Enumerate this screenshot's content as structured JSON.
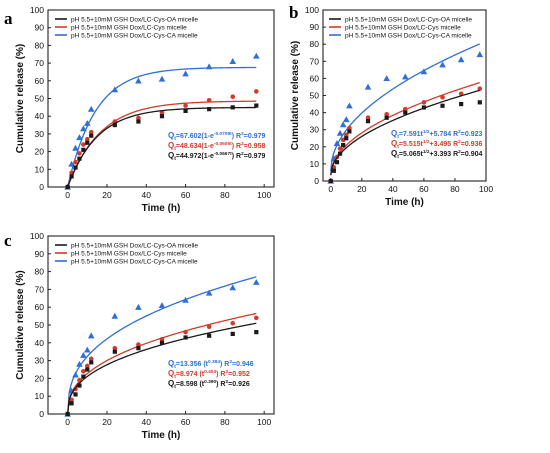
{
  "colors": {
    "oa": "#1a1a1a",
    "cys": "#d23b2a",
    "ca": "#2f6fd6"
  },
  "chart_data": [
    {
      "type": "scatter",
      "panel_label": "a",
      "xlabel": "Time (h)",
      "ylabel": "Cumulative release (%)",
      "xlim": [
        -10,
        105
      ],
      "ylim": [
        0,
        100
      ],
      "xticks": [
        0,
        20,
        40,
        60,
        80,
        100
      ],
      "yticks": [
        0,
        10,
        20,
        30,
        40,
        50,
        60,
        70,
        80,
        90,
        100
      ],
      "legend": [
        "pH 5.5+10mM GSH  Dox/LC-Cys-OA micelle",
        "pH 5.5+10mM GSH  Dox/LC-Cys micelle",
        "pH 5.5+10mM GSH  Dox/LC-Cys-CA micelle"
      ],
      "legend_position": "top-left",
      "series": [
        {
          "key": "ca",
          "marker": "triangle",
          "fit": {
            "model": "first-order",
            "A": 67.602,
            "k": 0.0709
          },
          "x": [
            0,
            2,
            4,
            6,
            8,
            10,
            12,
            24,
            36,
            48,
            60,
            72,
            84,
            96
          ],
          "y": [
            0,
            13,
            22,
            28,
            33,
            36,
            44,
            55,
            60,
            61,
            64,
            68,
            71,
            74
          ]
        },
        {
          "key": "cys",
          "marker": "circle",
          "fit": {
            "model": "first-order",
            "A": 48.634,
            "k": 0.0605
          },
          "x": [
            0,
            2,
            4,
            6,
            8,
            10,
            12,
            24,
            36,
            48,
            60,
            72,
            84,
            96
          ],
          "y": [
            0,
            8,
            14,
            19,
            24,
            27,
            31,
            37,
            39,
            42,
            46,
            49,
            51,
            54
          ]
        },
        {
          "key": "oa",
          "marker": "square",
          "fit": {
            "model": "first-order",
            "A": 44.972,
            "k": 0.0667
          },
          "x": [
            0,
            2,
            4,
            6,
            8,
            10,
            12,
            24,
            36,
            48,
            60,
            72,
            84,
            96
          ],
          "y": [
            0,
            6,
            11,
            16,
            21,
            25,
            29,
            35,
            37,
            40,
            43,
            44,
            45,
            46
          ]
        }
      ],
      "equations": [
        {
          "key": "ca",
          "main": "Q",
          "sub": "t",
          "mid": "=67.602(1-e",
          "sup": "-0.0709t",
          "tail": ") R",
          "tailsup": "2",
          "r2": "=0.979"
        },
        {
          "key": "cys",
          "main": "Q",
          "sub": "t",
          "mid": "=48.634(1-e",
          "sup": "-0.0605t",
          "tail": ") R",
          "tailsup": "2",
          "r2": "=0.958"
        },
        {
          "key": "oa",
          "main": "Q",
          "sub": "t",
          "mid": "=44.972(1-e",
          "sup": "-0.0667t",
          "tail": ") R",
          "tailsup": "2",
          "r2": "=0.979"
        }
      ]
    },
    {
      "type": "scatter",
      "panel_label": "b",
      "xlabel": "Time (h)",
      "ylabel": "Cumulative release (%)",
      "xlim": [
        -5,
        100
      ],
      "ylim": [
        0,
        100
      ],
      "xticks": [
        0,
        20,
        40,
        60,
        80,
        100
      ],
      "yticks": [
        0,
        10,
        20,
        30,
        40,
        50,
        60,
        70,
        80,
        90,
        100
      ],
      "legend": [
        "pH 5.5+10mM GSH  Dox/LC-Cys-OA micelle",
        "pH 5.5+10mM GSH  Dox/LC-Cys micelle",
        "pH 5.5+10mM GSH  Dox/LC-Cys-CA micelle"
      ],
      "legend_position": "top-left",
      "series": [
        {
          "key": "ca",
          "marker": "triangle",
          "fit": {
            "model": "higuchi",
            "a": 7.591,
            "b": 5.784
          },
          "x": [
            0,
            2,
            4,
            6,
            8,
            10,
            12,
            24,
            36,
            48,
            60,
            72,
            84,
            96
          ],
          "y": [
            0,
            13,
            22,
            28,
            33,
            36,
            44,
            55,
            60,
            61,
            64,
            68,
            71,
            74
          ]
        },
        {
          "key": "cys",
          "marker": "circle",
          "fit": {
            "model": "higuchi",
            "a": 5.515,
            "b": 3.495
          },
          "x": [
            0,
            2,
            4,
            6,
            8,
            10,
            12,
            24,
            36,
            48,
            60,
            72,
            84,
            96
          ],
          "y": [
            0,
            8,
            14,
            19,
            24,
            27,
            31,
            37,
            39,
            42,
            46,
            49,
            51,
            54
          ]
        },
        {
          "key": "oa",
          "marker": "square",
          "fit": {
            "model": "higuchi",
            "a": 5.065,
            "b": 3.393
          },
          "x": [
            0,
            2,
            4,
            6,
            8,
            10,
            12,
            24,
            36,
            48,
            60,
            72,
            84,
            96
          ],
          "y": [
            0,
            6,
            11,
            16,
            21,
            25,
            29,
            35,
            37,
            40,
            43,
            44,
            45,
            46
          ]
        }
      ],
      "equations": [
        {
          "key": "ca",
          "main": "Q",
          "sub": "t",
          "mid": "=7.591t",
          "sup": "1/2",
          "tail": "+5.784 R",
          "tailsup": "2",
          "r2": "=0.923"
        },
        {
          "key": "cys",
          "main": "Q",
          "sub": "t",
          "mid": "=5.515t",
          "sup": "1/2",
          "tail": "+3.495 R",
          "tailsup": "2",
          "r2": "=0.936"
        },
        {
          "key": "oa",
          "main": "Q",
          "sub": "t",
          "mid": "=5.065t",
          "sup": "1/2",
          "tail": "+3.393 R",
          "tailsup": "2",
          "r2": "=0.904"
        }
      ]
    },
    {
      "type": "scatter",
      "panel_label": "c",
      "xlabel": "Time (h)",
      "ylabel": "Cumulative release (%)",
      "xlim": [
        -10,
        105
      ],
      "ylim": [
        0,
        100
      ],
      "xticks": [
        0,
        20,
        40,
        60,
        80,
        100
      ],
      "yticks": [
        0,
        10,
        20,
        30,
        40,
        50,
        60,
        70,
        80,
        90,
        100
      ],
      "legend": [
        "pH 5.5+10mM GSH  Dox/LC-Cys-OA micelle",
        "pH 5.5+10mM GSH  Dox/LC-Cys micelle",
        "pH 5.5+10mM GSH  Dox/LC-Cys-CA micelle"
      ],
      "legend_position": "top-left",
      "series": [
        {
          "key": "ca",
          "marker": "triangle",
          "fit": {
            "model": "power",
            "a": 13.356,
            "n": 0.384
          },
          "x": [
            0,
            2,
            4,
            6,
            8,
            10,
            12,
            24,
            36,
            48,
            60,
            72,
            84,
            96
          ],
          "y": [
            0,
            13,
            22,
            28,
            33,
            36,
            44,
            55,
            60,
            61,
            64,
            68,
            71,
            74
          ]
        },
        {
          "key": "cys",
          "marker": "circle",
          "fit": {
            "model": "power",
            "a": 8.974,
            "n": 0.403
          },
          "x": [
            0,
            2,
            4,
            6,
            8,
            10,
            12,
            24,
            36,
            48,
            60,
            72,
            84,
            96
          ],
          "y": [
            0,
            8,
            14,
            19,
            24,
            27,
            31,
            37,
            39,
            42,
            46,
            49,
            51,
            54
          ]
        },
        {
          "key": "oa",
          "marker": "square",
          "fit": {
            "model": "power",
            "a": 8.598,
            "n": 0.39
          },
          "x": [
            0,
            2,
            4,
            6,
            8,
            10,
            12,
            24,
            36,
            48,
            60,
            72,
            84,
            96
          ],
          "y": [
            0,
            6,
            11,
            16,
            21,
            25,
            29,
            35,
            37,
            40,
            43,
            44,
            45,
            46
          ]
        }
      ],
      "equations": [
        {
          "key": "ca",
          "main": "Q",
          "sub": "t",
          "mid": "=13.356 (t",
          "sup": "0.384",
          "tail": ") R",
          "tailsup": "2",
          "r2": "=0.946"
        },
        {
          "key": "cys",
          "main": "Q",
          "sub": "t",
          "mid": "=8.974 (t",
          "sup": "0.403",
          "tail": ") R",
          "tailsup": "2",
          "r2": "=0.952"
        },
        {
          "key": "oa",
          "main": "Q",
          "sub": "t",
          "mid": "=8.598 (t",
          "sup": "0.390",
          "tail": ") R",
          "tailsup": "2",
          "r2": "=0.926"
        }
      ]
    }
  ]
}
